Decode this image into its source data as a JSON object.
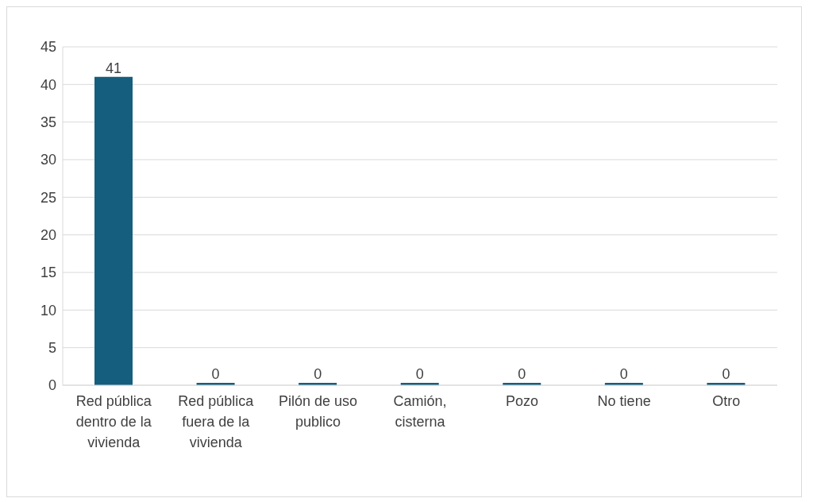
{
  "chart_data": {
    "type": "bar",
    "categories": [
      "Red pública dentro de la vivienda",
      "Red pública fuera de la vivienda",
      "Pilón de uso publico",
      "Camión, cisterna",
      "Pozo",
      "No tiene",
      "Otro"
    ],
    "values": [
      41,
      0,
      0,
      0,
      0,
      0,
      0
    ],
    "color": "#155e7e",
    "ylim": [
      0,
      45
    ],
    "yticks": [
      0,
      5,
      10,
      15,
      20,
      25,
      30,
      35,
      40,
      45
    ],
    "grid": "y",
    "data_labels": true
  }
}
